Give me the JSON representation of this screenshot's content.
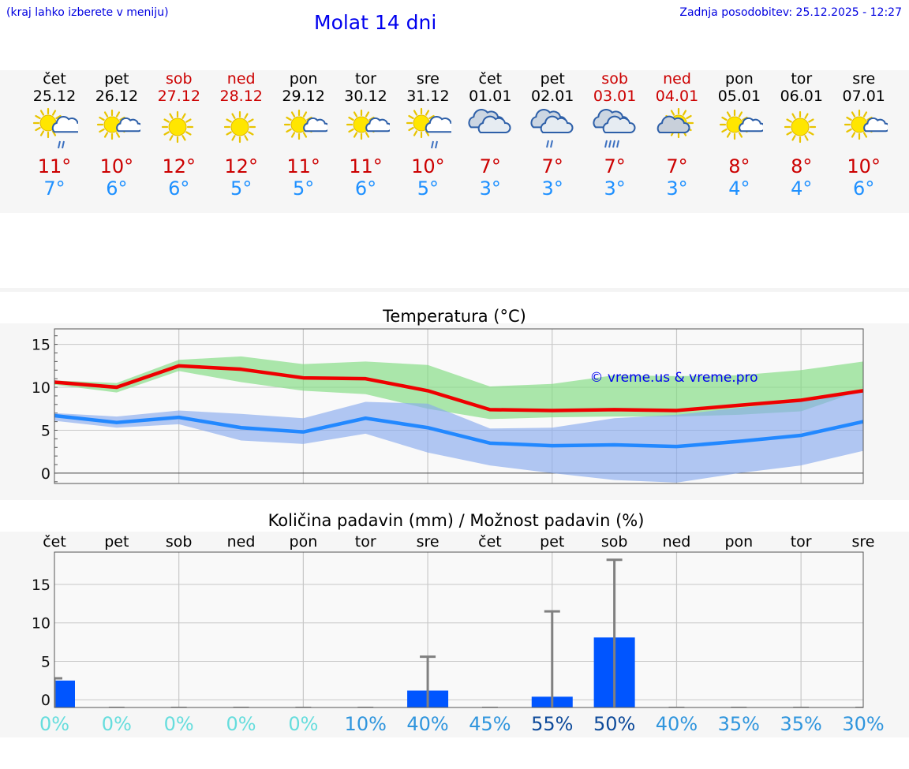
{
  "header": {
    "hint": "(kraj lahko izberete v meniju)",
    "title": "Molat 14 dni",
    "updated": "Zadnja posodobitev: 25.12.2025 - 12:27"
  },
  "forecast": [
    {
      "day": "čet",
      "date": "25.12",
      "weekend": false,
      "icon": "sun-cloud-rain-icon",
      "max": "11°",
      "min": "7°"
    },
    {
      "day": "pet",
      "date": "26.12",
      "weekend": false,
      "icon": "sun-cloud-icon",
      "max": "10°",
      "min": "6°"
    },
    {
      "day": "sob",
      "date": "27.12",
      "weekend": true,
      "icon": "sun-icon",
      "max": "12°",
      "min": "6°"
    },
    {
      "day": "ned",
      "date": "28.12",
      "weekend": true,
      "icon": "sun-icon",
      "max": "12°",
      "min": "5°"
    },
    {
      "day": "pon",
      "date": "29.12",
      "weekend": false,
      "icon": "sun-cloud-icon",
      "max": "11°",
      "min": "5°"
    },
    {
      "day": "tor",
      "date": "30.12",
      "weekend": false,
      "icon": "sun-cloud-icon",
      "max": "11°",
      "min": "6°"
    },
    {
      "day": "sre",
      "date": "31.12",
      "weekend": false,
      "icon": "sun-cloud-rain-icon",
      "max": "10°",
      "min": "5°"
    },
    {
      "day": "čet",
      "date": "01.01",
      "weekend": false,
      "icon": "cloudy-icon",
      "max": "7°",
      "min": "3°"
    },
    {
      "day": "pet",
      "date": "02.01",
      "weekend": false,
      "icon": "cloud-rain-icon",
      "max": "7°",
      "min": "3°"
    },
    {
      "day": "sob",
      "date": "03.01",
      "weekend": true,
      "icon": "cloud-heavy-rain-icon",
      "max": "7°",
      "min": "3°"
    },
    {
      "day": "ned",
      "date": "04.01",
      "weekend": true,
      "icon": "sun-cloud-dark-icon",
      "max": "7°",
      "min": "3°"
    },
    {
      "day": "pon",
      "date": "05.01",
      "weekend": false,
      "icon": "sun-cloud-icon",
      "max": "8°",
      "min": "4°"
    },
    {
      "day": "tor",
      "date": "06.01",
      "weekend": false,
      "icon": "sun-icon",
      "max": "8°",
      "min": "4°"
    },
    {
      "day": "sre",
      "date": "07.01",
      "weekend": false,
      "icon": "sun-cloud-icon",
      "max": "10°",
      "min": "6°"
    }
  ],
  "chart_data": [
    {
      "type": "line",
      "title": "Temperatura (°C)",
      "watermark": "© vreme.us & vreme.pro",
      "x": [
        0,
        1,
        2,
        3,
        4,
        5,
        6,
        7,
        8,
        9,
        10,
        11,
        12,
        13
      ],
      "ylim": [
        -1.2,
        16.8
      ],
      "yticks": [
        0,
        5,
        10,
        15
      ],
      "series": [
        {
          "name": "max",
          "color": "#ee0000",
          "values": [
            10.6,
            10.0,
            12.5,
            12.1,
            11.1,
            11.0,
            9.6,
            7.4,
            7.3,
            7.4,
            7.3,
            7.9,
            8.5,
            9.6
          ]
        },
        {
          "name": "min",
          "color": "#2288ff",
          "values": [
            6.7,
            5.9,
            6.5,
            5.3,
            4.8,
            6.4,
            5.3,
            3.5,
            3.2,
            3.3,
            3.1,
            3.7,
            4.4,
            6.0
          ]
        }
      ],
      "bands": [
        {
          "name": "max-range",
          "color": "#7fdc7f",
          "upper": [
            10.8,
            10.5,
            13.2,
            13.6,
            12.7,
            13.0,
            12.6,
            10.1,
            10.4,
            11.4,
            11.3,
            11.4,
            12.0,
            13.0
          ],
          "lower": [
            10.3,
            9.4,
            11.9,
            10.6,
            9.6,
            9.2,
            7.5,
            6.3,
            6.5,
            6.6,
            6.6,
            6.8,
            7.2,
            9.7
          ]
        },
        {
          "name": "min-range",
          "color": "#88aaee",
          "upper": [
            7.0,
            6.6,
            7.3,
            6.9,
            6.4,
            8.3,
            8.1,
            5.2,
            5.3,
            6.4,
            6.8,
            7.6,
            8.3,
            9.5
          ],
          "lower": [
            6.1,
            5.3,
            5.7,
            3.8,
            3.4,
            4.6,
            2.4,
            0.9,
            0.0,
            -0.8,
            -1.1,
            0.0,
            0.9,
            2.6
          ]
        }
      ]
    },
    {
      "type": "bar",
      "title": "Količina padavin (mm) / Možnost padavin (%)",
      "categories": [
        "čet",
        "pet",
        "sob",
        "ned",
        "pon",
        "tor",
        "sre",
        "čet",
        "pet",
        "sob",
        "ned",
        "pon",
        "tor",
        "sre"
      ],
      "ylim": [
        -1.0,
        19.2
      ],
      "yticks": [
        0,
        5,
        10,
        15
      ],
      "bar_color": "#0055ff",
      "values": [
        2.5,
        0,
        0,
        0,
        0,
        0,
        1.2,
        0,
        0.4,
        8.1,
        0,
        0,
        0,
        0
      ],
      "error_high": [
        2.8,
        0,
        0,
        0,
        0,
        0,
        5.6,
        0,
        11.5,
        18.2,
        0,
        0,
        0,
        0
      ],
      "probability": [
        "0%",
        "0%",
        "0%",
        "0%",
        "0%",
        "10%",
        "40%",
        "45%",
        "55%",
        "50%",
        "40%",
        "35%",
        "35%",
        "30%"
      ],
      "probability_colors": [
        "#66dddd",
        "#66dddd",
        "#66dddd",
        "#66dddd",
        "#66dddd",
        "#2f95dd",
        "#2f95dd",
        "#2f95dd",
        "#0d4a9a",
        "#0d4a9a",
        "#2f95dd",
        "#2f95dd",
        "#2f95dd",
        "#2f95dd"
      ]
    }
  ]
}
